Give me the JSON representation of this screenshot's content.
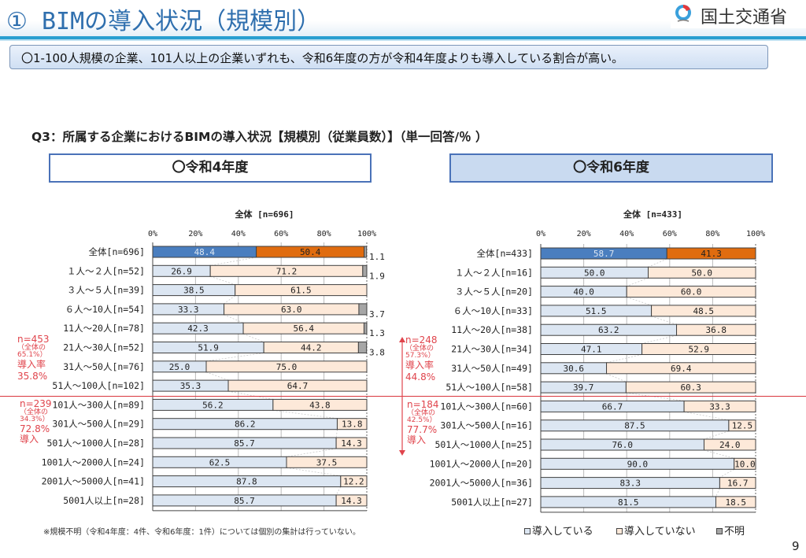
{
  "header": {
    "title": "① BIMの導入状況（規模別）",
    "logo_text": "国土交通省"
  },
  "summary": "〇1-100人規模の企業、101人以上の企業いずれも、令和6年度の方が令和4年度よりも導入している割合が高い。",
  "question": "Q3：所属する企業におけるBIMの導入状況【規模別（従業員数）】（単一回答/％ ）",
  "colors": {
    "total_yes": "#4a7ebf",
    "total_no": "#e06c0f",
    "yes": "#dce6f2",
    "no": "#fde9d9",
    "unknown": "#a6a6a6",
    "annotation": "#e0444c",
    "divider": "#d9363e"
  },
  "legend": [
    {
      "label": "導入している",
      "color": "#dce6f2"
    },
    {
      "label": "導入していない",
      "color": "#fde9d9"
    },
    {
      "label": "不明",
      "color": "#a6a6a6"
    }
  ],
  "footnote": "※規模不明（令和4年度：4件、令和6年度：1件）については個別の集計は行っていない。",
  "page_number": "9",
  "panels": {
    "left": {
      "year_label": "〇令和4年度",
      "annotation_small": {
        "n": "n=453",
        "l1": "（全体の",
        "l2": "65.1%）",
        "l3": "導入率",
        "l4": "35.8%"
      },
      "annotation_large": {
        "n": "n=239",
        "l1": "（全体の",
        "l2": "34.3%）",
        "l3": "72.8%",
        "l4": "導入"
      }
    },
    "right": {
      "year_label": "〇令和6年度",
      "annotation_small": {
        "n": "n=248",
        "l1": "（全体の",
        "l2": "57.3%）",
        "l3": "導入率",
        "l4": "44.8%"
      },
      "annotation_large": {
        "n": "n=184",
        "l1": "（全体の",
        "l2": "42.5%）",
        "l3": "77.7%",
        "l4": "導入"
      }
    }
  },
  "chart_data": [
    {
      "type": "bar",
      "orientation": "horizontal",
      "stacked": "100%",
      "title": "全体 [n=696]",
      "xlim": [
        0,
        100
      ],
      "xticks": [
        "0%",
        "20%",
        "40%",
        "60%",
        "80%",
        "100%"
      ],
      "grid": true,
      "categories": [
        "全体[n=696]",
        "１人～２人[n=52]",
        "３人～５人[n=39]",
        "６人～10人[n=54]",
        "11人～20人[n=78]",
        "21人～30人[n=52]",
        "31人～50人[n=76]",
        "51人～100人[n=102]",
        "101人～300人[n=89]",
        "301人～500人[n=29]",
        "501人～1000人[n=28]",
        "1001人～2000人[n=24]",
        "2001人～5000人[n=41]",
        "5001人以上[n=28]"
      ],
      "series": [
        {
          "name": "導入している",
          "values": [
            48.4,
            26.9,
            38.5,
            33.3,
            42.3,
            51.9,
            25.0,
            35.3,
            56.2,
            86.2,
            85.7,
            62.5,
            87.8,
            85.7
          ],
          "labels": [
            "48.4",
            "26.9",
            "38.5",
            "33.3",
            "42.3",
            "51.9",
            "25.0",
            "35.3",
            "56.2",
            "86.2",
            "85.7",
            "62.5",
            "87.8",
            "85.7"
          ]
        },
        {
          "name": "導入していない",
          "values": [
            50.4,
            71.2,
            61.5,
            63.0,
            56.4,
            44.2,
            75.0,
            64.7,
            43.8,
            13.8,
            14.3,
            37.5,
            12.2,
            14.3
          ],
          "labels": [
            "50.4",
            "71.2",
            "61.5",
            "63.0",
            "56.4",
            "44.2",
            "75.0",
            "64.7",
            "43.8",
            "13.8",
            "14.3",
            "37.5",
            "12.2",
            "14.3"
          ]
        },
        {
          "name": "不明",
          "values": [
            1.1,
            1.9,
            0,
            3.7,
            1.3,
            3.8,
            0,
            0,
            0,
            0,
            0,
            0,
            0,
            0
          ],
          "labels": [
            "1.1",
            "1.9",
            "",
            "3.7",
            "1.3",
            "3.8",
            "",
            "",
            "",
            "",
            "",
            "",
            "",
            ""
          ]
        }
      ]
    },
    {
      "type": "bar",
      "orientation": "horizontal",
      "stacked": "100%",
      "title": "全体 [n=433]",
      "xlim": [
        0,
        100
      ],
      "xticks": [
        "0%",
        "20%",
        "40%",
        "60%",
        "80%",
        "100%"
      ],
      "grid": true,
      "categories": [
        "全体[n=433]",
        "１人～２人[n=16]",
        "３人～５人[n=20]",
        "６人～10人[n=33]",
        "11人～20人[n=38]",
        "21人～30人[n=34]",
        "31人～50人[n=49]",
        "51人～100人[n=58]",
        "101人～300人[n=60]",
        "301人～500人[n=16]",
        "501人～1000人[n=25]",
        "1001人～2000人[n=20]",
        "2001人～5000人[n=36]",
        "5001人以上[n=27]"
      ],
      "series": [
        {
          "name": "導入している",
          "values": [
            58.7,
            50.0,
            40.0,
            51.5,
            63.2,
            47.1,
            30.6,
            39.7,
            66.7,
            87.5,
            76.0,
            90.0,
            83.3,
            81.5
          ],
          "labels": [
            "58.7",
            "50.0",
            "40.0",
            "51.5",
            "63.2",
            "47.1",
            "30.6",
            "39.7",
            "66.7",
            "87.5",
            "76.0",
            "90.0",
            "83.3",
            "81.5"
          ]
        },
        {
          "name": "導入していない",
          "values": [
            41.3,
            50.0,
            60.0,
            48.5,
            36.8,
            52.9,
            69.4,
            60.3,
            33.3,
            12.5,
            24.0,
            10.0,
            16.7,
            18.5
          ],
          "labels": [
            "41.3",
            "50.0",
            "60.0",
            "48.5",
            "36.8",
            "52.9",
            "69.4",
            "60.3",
            "33.3",
            "12.5",
            "24.0",
            "10.0",
            "16.7",
            "18.5"
          ]
        },
        {
          "name": "不明",
          "values": [
            0,
            0,
            0,
            0,
            0,
            0,
            0,
            0,
            0,
            0,
            0,
            0,
            0,
            0
          ],
          "labels": [
            "",
            "",
            "",
            "",
            "",
            "",
            "",
            "",
            "",
            "",
            "",
            "",
            "",
            ""
          ]
        }
      ]
    }
  ]
}
